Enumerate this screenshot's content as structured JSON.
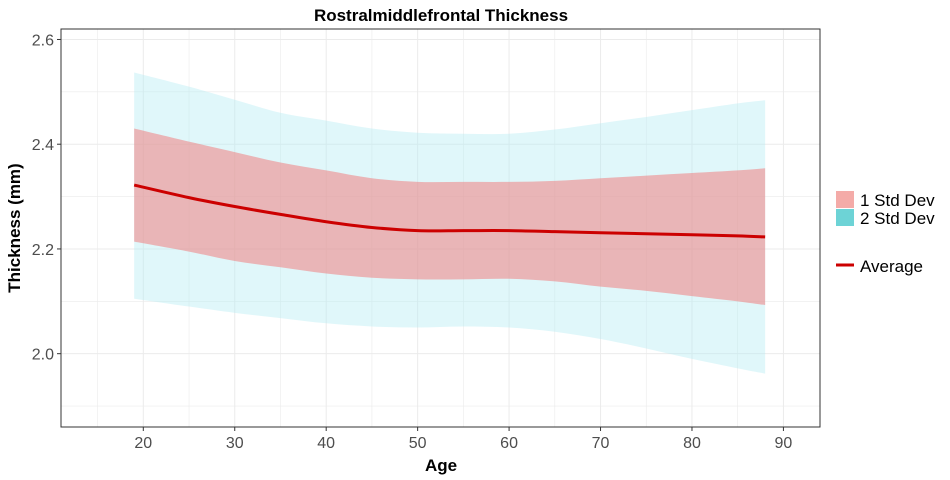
{
  "chart_data": {
    "type": "line",
    "title": "Rostralmiddlefrontal Thickness",
    "xlabel": "Age",
    "ylabel": "Thickness (mm)",
    "xlim": [
      11,
      94
    ],
    "ylim": [
      1.86,
      2.62
    ],
    "xticks": [
      20,
      30,
      40,
      50,
      60,
      70,
      80,
      90
    ],
    "yticks": [
      2.0,
      2.2,
      2.4,
      2.6
    ],
    "ytick_labels": [
      "2.0",
      "2.2",
      "2.4",
      "2.6"
    ],
    "grid": true,
    "legend_position": "right",
    "legend": {
      "bands": [
        "1 Std Dev",
        "2 Std Dev"
      ],
      "line": "Average"
    },
    "x": [
      19,
      25,
      30,
      35,
      40,
      45,
      50,
      55,
      60,
      65,
      70,
      75,
      80,
      85,
      88
    ],
    "average": [
      2.322,
      2.298,
      2.281,
      2.266,
      2.252,
      2.241,
      2.235,
      2.235,
      2.235,
      2.233,
      2.231,
      2.229,
      2.227,
      2.225,
      2.223
    ],
    "sd1_upper": [
      2.43,
      2.405,
      2.385,
      2.365,
      2.35,
      2.335,
      2.328,
      2.328,
      2.328,
      2.33,
      2.335,
      2.34,
      2.345,
      2.35,
      2.354
    ],
    "sd1_lower": [
      2.214,
      2.195,
      2.177,
      2.165,
      2.153,
      2.145,
      2.142,
      2.142,
      2.143,
      2.138,
      2.128,
      2.12,
      2.11,
      2.1,
      2.093
    ],
    "sd2_upper": [
      2.537,
      2.51,
      2.485,
      2.46,
      2.445,
      2.43,
      2.422,
      2.42,
      2.42,
      2.428,
      2.44,
      2.452,
      2.465,
      2.478,
      2.484
    ],
    "sd2_lower": [
      2.105,
      2.09,
      2.078,
      2.068,
      2.058,
      2.052,
      2.05,
      2.052,
      2.05,
      2.042,
      2.028,
      2.01,
      1.99,
      1.972,
      1.962
    ],
    "colors": {
      "sd1": "#f08080",
      "sd2": "#b2ebf2",
      "sd1_legend": "#f4aba8",
      "sd2_legend": "#6dd3d6",
      "average": "#cc0000",
      "grid": "#ebebeb",
      "panel_border": "#333333"
    }
  }
}
